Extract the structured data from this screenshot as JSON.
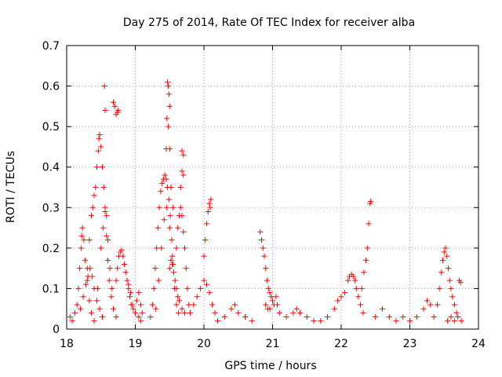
{
  "chart_data": {
    "type": "scatter",
    "title": "Day 275 of 2014, Rate Of TEC Index for receiver alba",
    "xlabel": "GPS time / hours",
    "ylabel": "ROTI / TECUs",
    "xlim": [
      18,
      24
    ],
    "ylim": [
      0,
      0.7
    ],
    "xticks": [
      18,
      19,
      20,
      21,
      22,
      23,
      24
    ],
    "yticks": [
      0,
      0.1,
      0.2,
      0.3,
      0.4,
      0.5,
      0.6,
      0.7
    ],
    "xtick_labels": [
      "18",
      "19",
      "20",
      "21",
      "22",
      "23",
      "24"
    ],
    "ytick_labels": [
      "0",
      "0.1",
      "0.2",
      "0.3",
      "0.4",
      "0.5",
      "0.6",
      "0.7"
    ],
    "grid": true,
    "marker": "plus",
    "color": "#ff0000",
    "series": [
      {
        "points": [
          [
            18.05,
            0.03
          ],
          [
            18.08,
            0.02
          ],
          [
            18.12,
            0.04
          ],
          [
            18.15,
            0.06
          ],
          [
            18.17,
            0.1
          ],
          [
            18.19,
            0.15
          ],
          [
            18.21,
            0.2
          ],
          [
            18.22,
            0.23
          ],
          [
            18.23,
            0.25
          ],
          [
            18.25,
            0.22
          ],
          [
            18.27,
            0.17
          ],
          [
            18.3,
            0.12
          ],
          [
            18.33,
            0.07
          ],
          [
            18.36,
            0.04
          ],
          [
            18.4,
            0.02
          ],
          [
            18.2,
            0.05
          ],
          [
            18.24,
            0.08
          ],
          [
            18.28,
            0.11
          ],
          [
            18.31,
            0.13
          ],
          [
            18.34,
            0.15
          ],
          [
            18.37,
            0.13
          ],
          [
            18.4,
            0.1
          ],
          [
            18.44,
            0.07
          ],
          [
            18.48,
            0.05
          ],
          [
            18.52,
            0.03
          ],
          [
            18.3,
            0.15
          ],
          [
            18.33,
            0.22
          ],
          [
            18.36,
            0.28
          ],
          [
            18.38,
            0.3
          ],
          [
            18.4,
            0.33
          ],
          [
            18.42,
            0.35
          ],
          [
            18.44,
            0.4
          ],
          [
            18.46,
            0.44
          ],
          [
            18.47,
            0.47
          ],
          [
            18.48,
            0.48
          ],
          [
            18.5,
            0.45
          ],
          [
            18.52,
            0.4
          ],
          [
            18.54,
            0.35
          ],
          [
            18.56,
            0.29
          ],
          [
            18.58,
            0.23
          ],
          [
            18.6,
            0.17
          ],
          [
            18.62,
            0.12
          ],
          [
            18.65,
            0.08
          ],
          [
            18.68,
            0.05
          ],
          [
            18.72,
            0.03
          ],
          [
            18.45,
            0.1
          ],
          [
            18.5,
            0.2
          ],
          [
            18.53,
            0.25
          ],
          [
            18.56,
            0.3
          ],
          [
            18.58,
            0.28
          ],
          [
            18.6,
            0.22
          ],
          [
            18.63,
            0.15
          ],
          [
            18.66,
            0.1
          ],
          [
            18.55,
            0.6
          ],
          [
            18.56,
            0.54
          ],
          [
            18.68,
            0.56
          ],
          [
            18.7,
            0.55
          ],
          [
            18.72,
            0.53
          ],
          [
            18.74,
            0.535
          ],
          [
            18.75,
            0.54
          ],
          [
            18.72,
            0.12
          ],
          [
            18.74,
            0.15
          ],
          [
            18.76,
            0.18
          ],
          [
            18.78,
            0.19
          ],
          [
            18.8,
            0.195
          ],
          [
            18.82,
            0.18
          ],
          [
            18.84,
            0.16
          ],
          [
            18.86,
            0.14
          ],
          [
            18.88,
            0.12
          ],
          [
            18.9,
            0.11
          ],
          [
            18.93,
            0.09
          ],
          [
            18.96,
            0.06
          ],
          [
            19.0,
            0.04
          ],
          [
            19.05,
            0.03
          ],
          [
            19.08,
            0.02
          ],
          [
            18.9,
            0.1
          ],
          [
            18.92,
            0.08
          ],
          [
            18.94,
            0.06
          ],
          [
            18.97,
            0.05
          ],
          [
            19.02,
            0.07
          ],
          [
            19.05,
            0.09
          ],
          [
            19.08,
            0.06
          ],
          [
            19.1,
            0.04
          ],
          [
            19.22,
            0.03
          ],
          [
            19.25,
            0.06
          ],
          [
            19.27,
            0.1
          ],
          [
            19.29,
            0.15
          ],
          [
            19.31,
            0.2
          ],
          [
            19.33,
            0.25
          ],
          [
            19.35,
            0.3
          ],
          [
            19.37,
            0.34
          ],
          [
            19.39,
            0.36
          ],
          [
            19.41,
            0.37
          ],
          [
            19.43,
            0.38
          ],
          [
            19.45,
            0.37
          ],
          [
            19.47,
            0.35
          ],
          [
            19.49,
            0.32
          ],
          [
            19.51,
            0.28
          ],
          [
            19.53,
            0.22
          ],
          [
            19.55,
            0.16
          ],
          [
            19.57,
            0.1
          ],
          [
            19.6,
            0.06
          ],
          [
            19.63,
            0.04
          ],
          [
            19.3,
            0.05
          ],
          [
            19.34,
            0.12
          ],
          [
            19.38,
            0.2
          ],
          [
            19.42,
            0.27
          ],
          [
            19.46,
            0.3
          ],
          [
            19.5,
            0.25
          ],
          [
            19.54,
            0.18
          ],
          [
            19.58,
            0.12
          ],
          [
            19.62,
            0.08
          ],
          [
            19.47,
            0.61
          ],
          [
            19.48,
            0.6
          ],
          [
            19.49,
            0.58
          ],
          [
            19.5,
            0.55
          ],
          [
            19.46,
            0.52
          ],
          [
            19.48,
            0.5
          ],
          [
            19.45,
            0.445
          ],
          [
            19.5,
            0.445
          ],
          [
            19.52,
            0.35
          ],
          [
            19.55,
            0.3
          ],
          [
            19.5,
            0.15
          ],
          [
            19.52,
            0.17
          ],
          [
            19.54,
            0.16
          ],
          [
            19.56,
            0.14
          ],
          [
            19.6,
            0.1
          ],
          [
            19.64,
            0.07
          ],
          [
            19.68,
            0.05
          ],
          [
            19.72,
            0.04
          ],
          [
            19.6,
            0.2
          ],
          [
            19.62,
            0.25
          ],
          [
            19.64,
            0.28
          ],
          [
            19.66,
            0.3
          ],
          [
            19.68,
            0.28
          ],
          [
            19.7,
            0.24
          ],
          [
            19.72,
            0.2
          ],
          [
            19.74,
            0.15
          ],
          [
            19.76,
            0.1
          ],
          [
            19.78,
            0.06
          ],
          [
            19.68,
            0.44
          ],
          [
            19.7,
            0.43
          ],
          [
            19.68,
            0.39
          ],
          [
            19.7,
            0.38
          ],
          [
            19.66,
            0.35
          ],
          [
            19.8,
            0.04
          ],
          [
            19.85,
            0.06
          ],
          [
            19.9,
            0.08
          ],
          [
            19.95,
            0.1
          ],
          [
            20.0,
            0.12
          ],
          [
            20.04,
            0.11
          ],
          [
            20.08,
            0.09
          ],
          [
            20.12,
            0.06
          ],
          [
            20.16,
            0.04
          ],
          [
            20.0,
            0.18
          ],
          [
            20.02,
            0.22
          ],
          [
            20.04,
            0.26
          ],
          [
            20.06,
            0.29
          ],
          [
            20.08,
            0.31
          ],
          [
            20.1,
            0.32
          ],
          [
            20.09,
            0.3
          ],
          [
            20.2,
            0.02
          ],
          [
            20.3,
            0.03
          ],
          [
            20.4,
            0.05
          ],
          [
            20.45,
            0.06
          ],
          [
            20.5,
            0.04
          ],
          [
            20.6,
            0.03
          ],
          [
            20.7,
            0.02
          ],
          [
            20.82,
            0.24
          ],
          [
            20.84,
            0.22
          ],
          [
            20.86,
            0.2
          ],
          [
            20.88,
            0.18
          ],
          [
            20.9,
            0.15
          ],
          [
            20.92,
            0.12
          ],
          [
            20.94,
            0.1
          ],
          [
            20.96,
            0.09
          ],
          [
            20.98,
            0.08
          ],
          [
            21.0,
            0.07
          ],
          [
            21.02,
            0.06
          ],
          [
            21.05,
            0.08
          ],
          [
            21.07,
            0.06
          ],
          [
            21.1,
            0.04
          ],
          [
            20.9,
            0.06
          ],
          [
            20.93,
            0.05
          ],
          [
            20.96,
            0.05
          ],
          [
            21.2,
            0.03
          ],
          [
            21.3,
            0.04
          ],
          [
            21.35,
            0.05
          ],
          [
            21.4,
            0.04
          ],
          [
            21.5,
            0.03
          ],
          [
            21.6,
            0.02
          ],
          [
            21.7,
            0.02
          ],
          [
            21.8,
            0.03
          ],
          [
            21.9,
            0.05
          ],
          [
            21.95,
            0.07
          ],
          [
            22.0,
            0.08
          ],
          [
            22.05,
            0.09
          ],
          [
            22.1,
            0.12
          ],
          [
            22.12,
            0.13
          ],
          [
            22.15,
            0.135
          ],
          [
            22.18,
            0.13
          ],
          [
            22.2,
            0.12
          ],
          [
            22.22,
            0.1
          ],
          [
            22.25,
            0.08
          ],
          [
            22.28,
            0.06
          ],
          [
            22.32,
            0.04
          ],
          [
            22.3,
            0.1
          ],
          [
            22.33,
            0.14
          ],
          [
            22.36,
            0.17
          ],
          [
            22.38,
            0.2
          ],
          [
            22.4,
            0.26
          ],
          [
            22.42,
            0.31
          ],
          [
            22.43,
            0.315
          ],
          [
            22.5,
            0.03
          ],
          [
            22.6,
            0.05
          ],
          [
            22.7,
            0.03
          ],
          [
            22.8,
            0.02
          ],
          [
            22.9,
            0.03
          ],
          [
            23.0,
            0.02
          ],
          [
            23.1,
            0.03
          ],
          [
            23.2,
            0.05
          ],
          [
            23.25,
            0.07
          ],
          [
            23.3,
            0.06
          ],
          [
            23.35,
            0.03
          ],
          [
            23.4,
            0.06
          ],
          [
            23.43,
            0.1
          ],
          [
            23.46,
            0.14
          ],
          [
            23.48,
            0.17
          ],
          [
            23.5,
            0.19
          ],
          [
            23.52,
            0.2
          ],
          [
            23.54,
            0.18
          ],
          [
            23.56,
            0.15
          ],
          [
            23.58,
            0.12
          ],
          [
            23.6,
            0.1
          ],
          [
            23.62,
            0.08
          ],
          [
            23.65,
            0.06
          ],
          [
            23.68,
            0.04
          ],
          [
            23.72,
            0.12
          ],
          [
            23.74,
            0.115
          ],
          [
            23.55,
            0.02
          ],
          [
            23.6,
            0.03
          ],
          [
            23.65,
            0.02
          ],
          [
            23.7,
            0.03
          ],
          [
            23.75,
            0.02
          ]
        ]
      }
    ]
  }
}
